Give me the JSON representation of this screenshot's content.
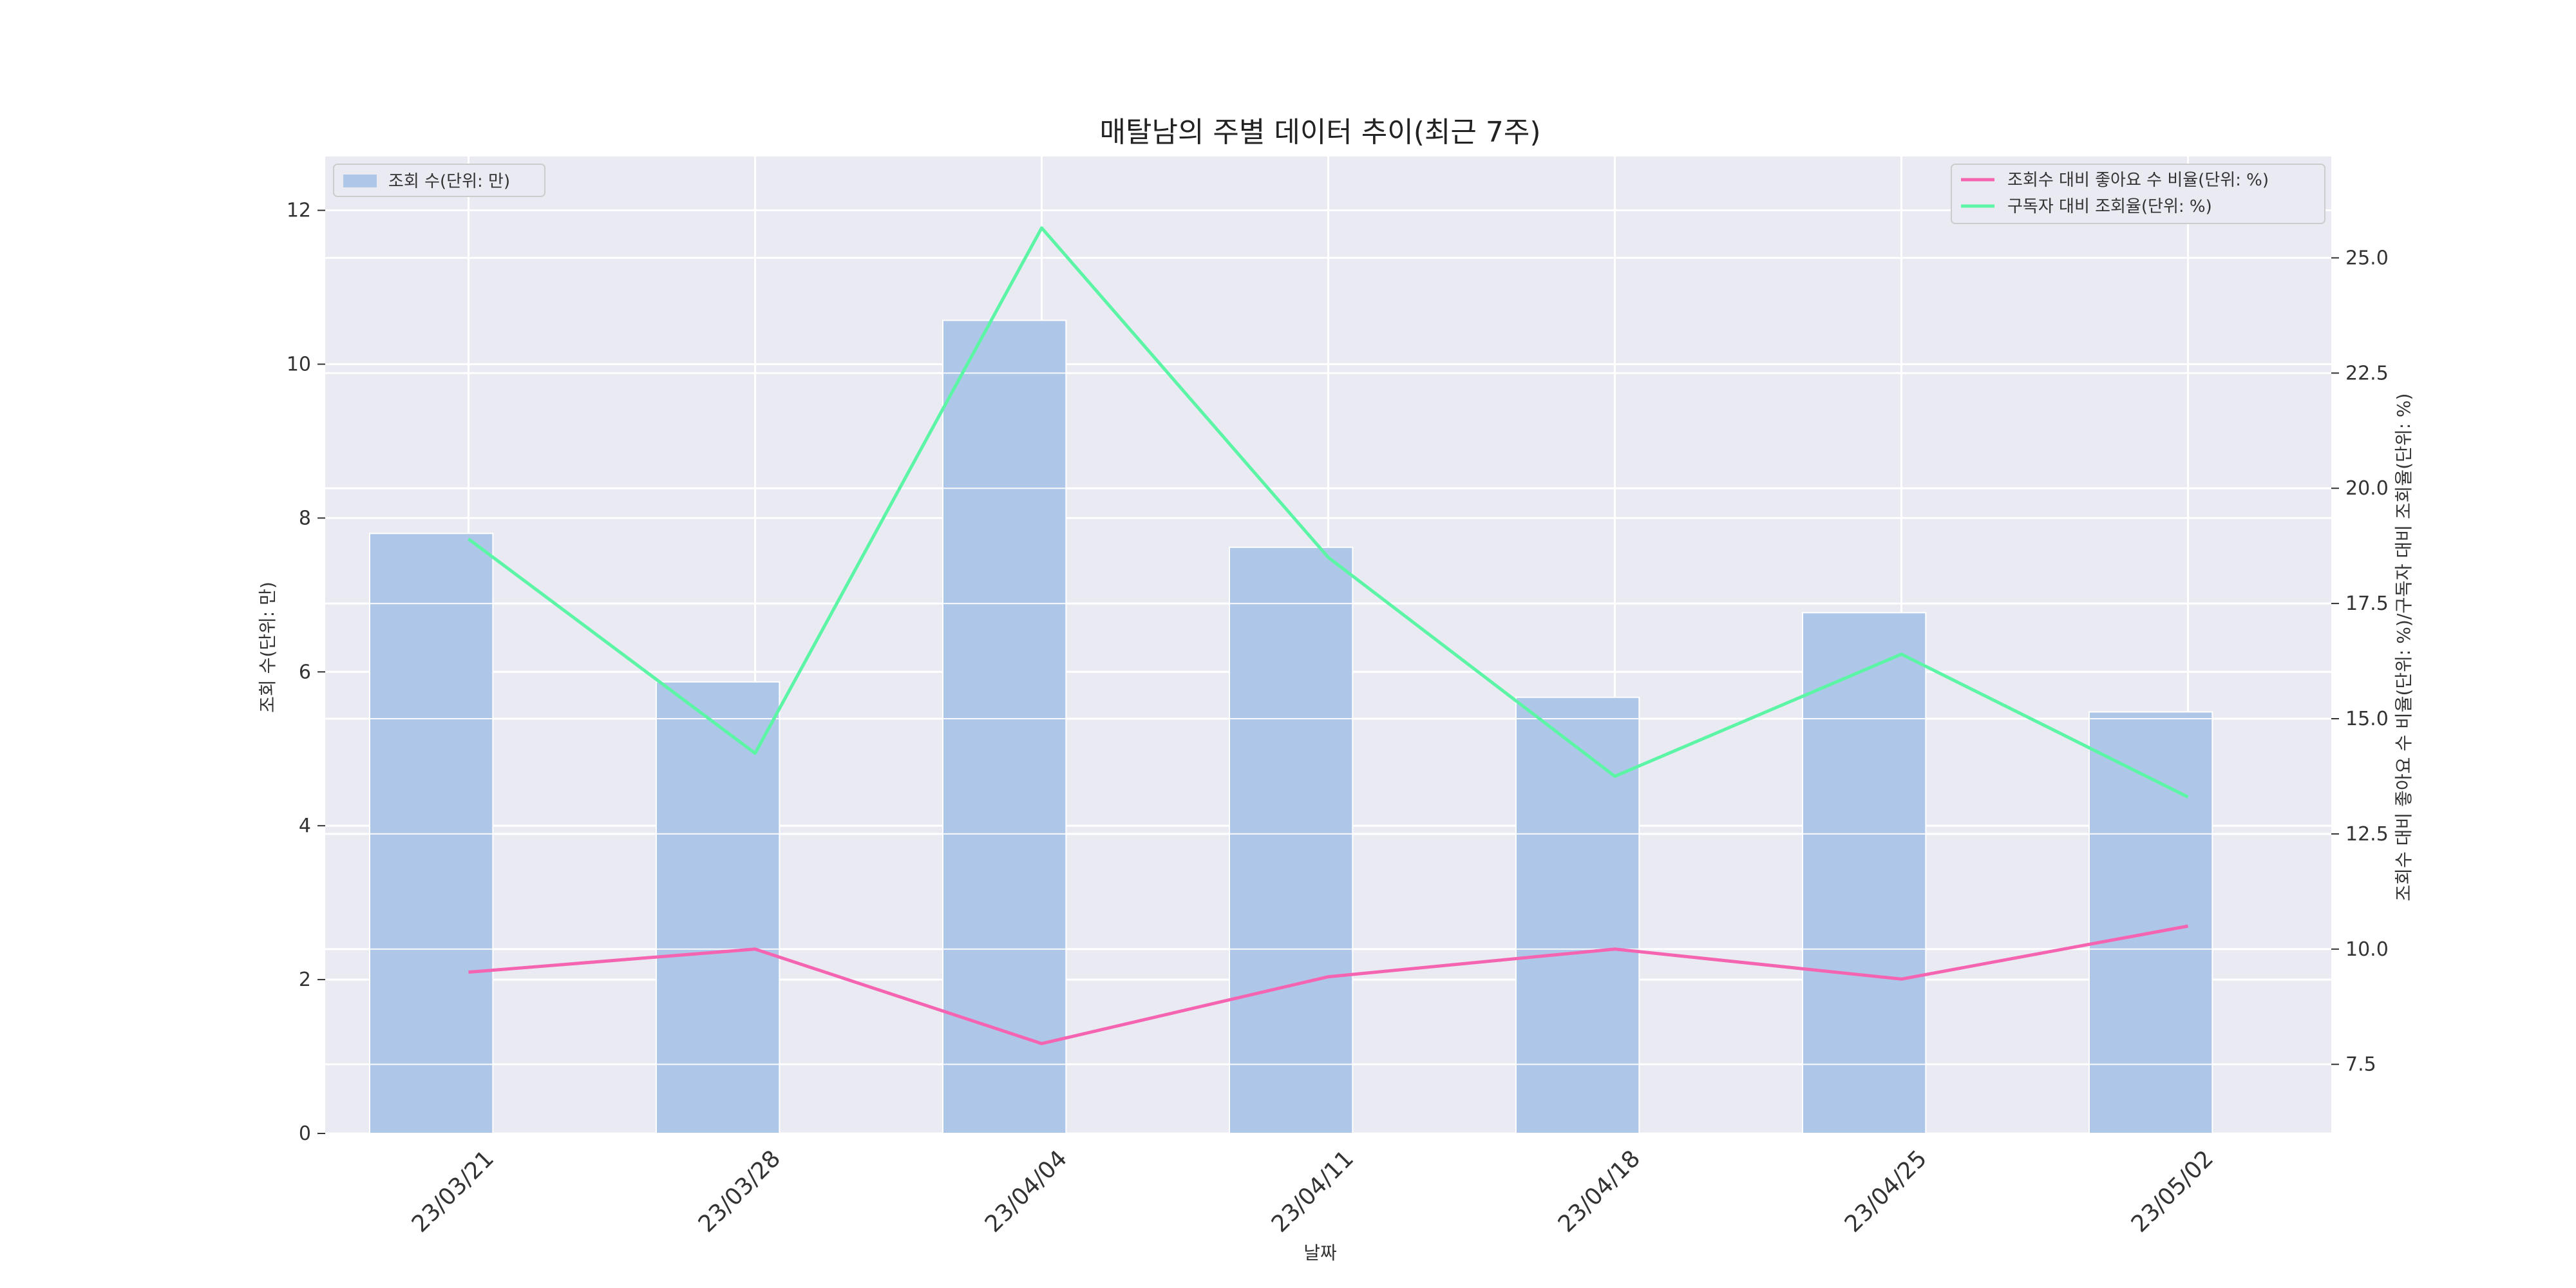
{
  "chart_data": {
    "type": "bar",
    "title": "매탈남의 주별 데이터 추이(최근 7주)",
    "xlabel": "날짜",
    "ylabel_left": "조회 수(단위: 만)",
    "ylabel_right": "조회수 대비 좋아요 수 비율(단위: %)/구독자 대비 조회율(단위: %)",
    "categories": [
      "23/03/21",
      "23/03/28",
      "23/04/04",
      "23/04/11",
      "23/04/18",
      "23/04/25",
      "23/05/02"
    ],
    "ylim_left": [
      0,
      12.7
    ],
    "yticks_left": [
      0,
      2,
      4,
      6,
      8,
      10,
      12
    ],
    "ylim_right": [
      6.0,
      27.2
    ],
    "yticks_right": [
      7.5,
      10.0,
      12.5,
      15.0,
      17.5,
      20.0,
      22.5,
      25.0
    ],
    "grid": true,
    "bar_series": {
      "name": "조회 수(단위: 만)",
      "values": [
        7.8,
        5.87,
        10.57,
        7.62,
        5.67,
        6.77,
        5.48
      ],
      "color": "#aec7e8",
      "legend_position": "top-left"
    },
    "line_series": [
      {
        "name": "조회수 대비 좋아요 수 비율(단위: %)",
        "values": [
          9.5,
          10.0,
          7.95,
          9.4,
          10.0,
          9.35,
          10.5
        ],
        "color": "#f564b1"
      },
      {
        "name": "구독자 대비 조회율(단위: %)",
        "values": [
          18.9,
          14.25,
          25.65,
          18.5,
          13.75,
          16.4,
          13.3
        ],
        "color": "#5cf5a6"
      }
    ],
    "line_legend_position": "top-right",
    "background_color": "#eaeaf2"
  }
}
